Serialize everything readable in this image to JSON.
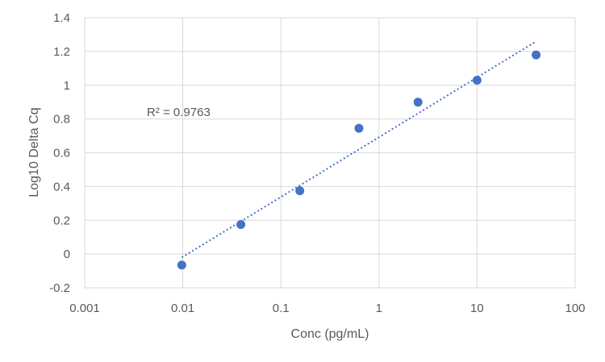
{
  "chart_data": {
    "type": "scatter",
    "x_scale": "log",
    "xlabel": "Conc (pg/mL)",
    "ylabel": "Log10 Delta Cq",
    "xlim": [
      0.001,
      100
    ],
    "ylim": [
      -0.2,
      1.4
    ],
    "x_ticks": [
      0.001,
      0.01,
      0.1,
      1,
      10,
      100
    ],
    "x_tick_labels": [
      "0.001",
      "0.01",
      "0.1",
      "1",
      "10",
      "100"
    ],
    "y_ticks": [
      -0.2,
      0,
      0.2,
      0.4,
      0.6,
      0.8,
      1,
      1.2,
      1.4
    ],
    "y_tick_labels": [
      "-0.2",
      "0",
      "0.2",
      "0.4",
      "0.6",
      "0.8",
      "1",
      "1.2",
      "1.4"
    ],
    "grid": true,
    "legend": "none",
    "series": [
      {
        "color": "#4472c4",
        "points": [
          {
            "x": 0.00977,
            "y": -0.065
          },
          {
            "x": 0.0391,
            "y": 0.175
          },
          {
            "x": 0.156,
            "y": 0.375
          },
          {
            "x": 0.625,
            "y": 0.745
          },
          {
            "x": 2.5,
            "y": 0.9
          },
          {
            "x": 10,
            "y": 1.03
          },
          {
            "x": 40,
            "y": 1.18
          }
        ]
      }
    ],
    "trendline": {
      "kind": "logarithmic",
      "style": "dotted",
      "color": "#4472c4",
      "points": [
        {
          "x": 0.00977,
          "y": -0.02
        },
        {
          "x": 40,
          "y": 1.26
        }
      ]
    },
    "annotations": [
      {
        "text": "R² = 0.9763"
      }
    ]
  }
}
